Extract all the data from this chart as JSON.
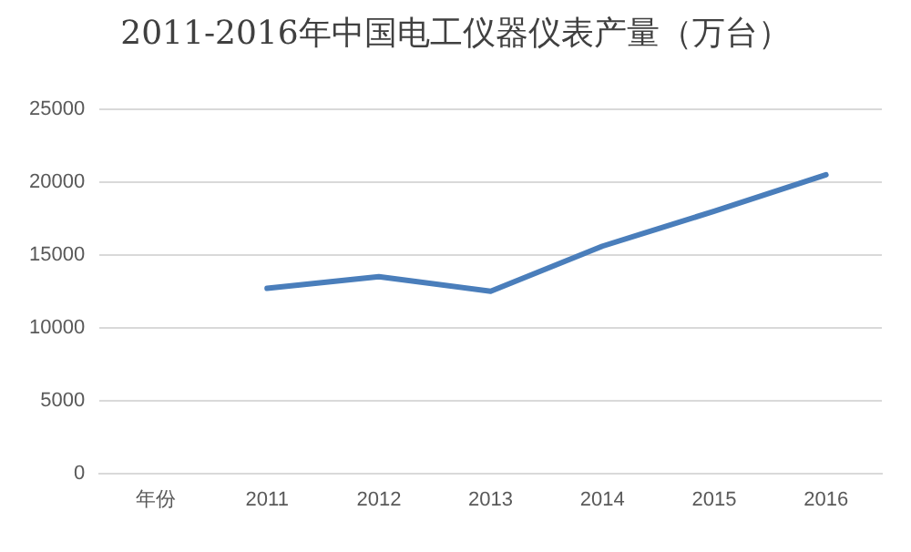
{
  "chart_data": {
    "type": "line",
    "title": "2011-2016年中国电工仪器仪表产量（万台）",
    "categories": [
      "年份",
      "2011",
      "2012",
      "2013",
      "2014",
      "2015",
      "2016"
    ],
    "series": [
      {
        "color": "#4a7ebb",
        "values": [
          null,
          12700,
          13500,
          12500,
          15600,
          18000,
          20500
        ]
      }
    ],
    "ylim": [
      0,
      25000
    ],
    "yticks": [
      0,
      5000,
      10000,
      15000,
      20000,
      25000
    ],
    "grid": "y",
    "legend": false,
    "marker": "none",
    "line_style": "solid"
  }
}
